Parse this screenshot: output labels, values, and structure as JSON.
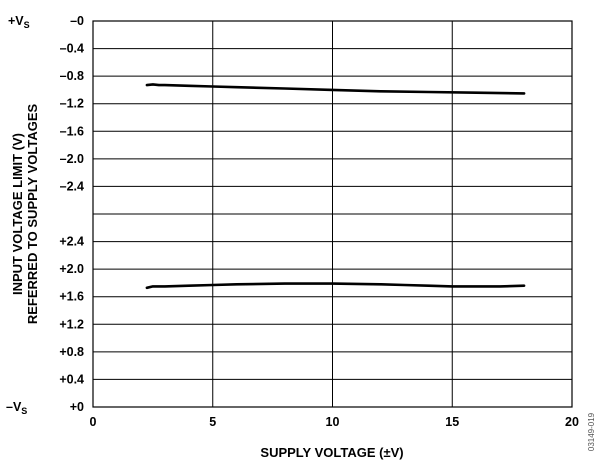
{
  "chart_data": {
    "type": "line",
    "xlabel": "SUPPLY VOLTAGE (±V)",
    "ylabel": [
      "INPUT VOLTAGE LIMIT (V)",
      "REFERRED TO SUPPLY VOLTAGES"
    ],
    "xlim": [
      0,
      20
    ],
    "x_ticks": [
      "0",
      "5",
      "10",
      "15",
      "20"
    ],
    "upper_panel": {
      "reference": "+V",
      "reference_sub": "S",
      "ylim": [
        -2.8,
        0
      ],
      "tick_labels": [
        "–0",
        "–0.4",
        "–0.8",
        "–1.2",
        "–1.6",
        "–2.0",
        "–2.4"
      ]
    },
    "lower_panel": {
      "reference": "–V",
      "reference_sub": "S",
      "ylim": [
        0,
        2.8
      ],
      "tick_labels": [
        "+2.4",
        "+2.0",
        "+1.6",
        "+1.2",
        "+0.8",
        "+0.4",
        "+0"
      ]
    },
    "series": [
      {
        "panel": "upper",
        "color": "#000000",
        "x": [
          2.25,
          2.5,
          2.75,
          3,
          4,
          5,
          6,
          8,
          10,
          12,
          14,
          16,
          18
        ],
        "y": [
          -0.93,
          -0.92,
          -0.93,
          -0.93,
          -0.94,
          -0.95,
          -0.96,
          -0.98,
          -1.0,
          -1.02,
          -1.03,
          -1.04,
          -1.05
        ]
      },
      {
        "panel": "lower",
        "color": "#000000",
        "x": [
          2.25,
          2.5,
          3,
          4,
          5,
          6,
          8,
          10,
          12,
          13,
          14,
          15,
          16,
          17,
          18
        ],
        "y": [
          1.73,
          1.75,
          1.75,
          1.76,
          1.77,
          1.78,
          1.79,
          1.79,
          1.78,
          1.77,
          1.76,
          1.75,
          1.75,
          1.75,
          1.76
        ]
      }
    ],
    "grid": true,
    "figure_code": "03149-019"
  }
}
